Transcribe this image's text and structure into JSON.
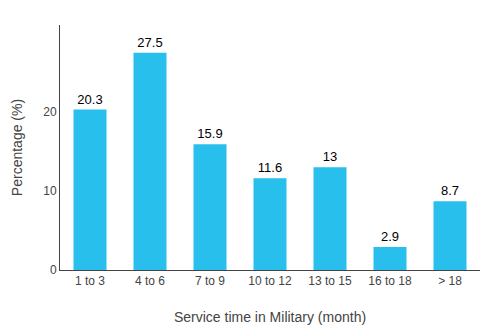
{
  "chart_data": {
    "type": "bar",
    "categories": [
      "1 to 3",
      "4 to 6",
      "7 to 9",
      "10 to 12",
      "13 to 15",
      "16 to 18",
      "> 18"
    ],
    "values": [
      20.3,
      27.5,
      15.9,
      11.6,
      13,
      2.9,
      8.7
    ],
    "color": "#29BFEC",
    "xlabel": "Service time in Military (month)",
    "ylabel": "Percentage (%)",
    "ylim": [
      0,
      31
    ],
    "yticks": [
      0,
      10,
      20
    ],
    "grid": false,
    "data_labels": true
  }
}
